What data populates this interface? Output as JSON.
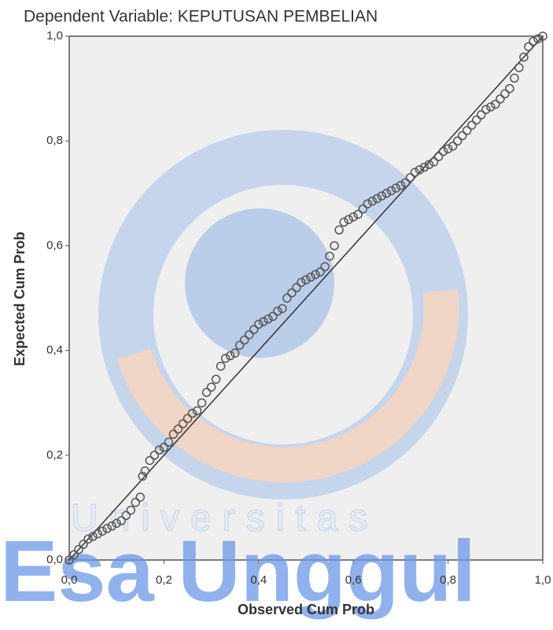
{
  "chart_data": {
    "type": "scatter",
    "title": "Dependent Variable: KEPUTUSAN PEMBELIAN",
    "x_label": "Observed Cum Prob",
    "y_label": "Expected Cum Prob",
    "xlim": [
      0,
      1
    ],
    "ylim": [
      0,
      1
    ],
    "xticks": [
      {
        "value": 0,
        "label": "0,0"
      },
      {
        "value": 0.2,
        "label": "0,2"
      },
      {
        "value": 0.4,
        "label": "0,4"
      },
      {
        "value": 0.6,
        "label": "0,6"
      },
      {
        "value": 0.8,
        "label": "0,8"
      },
      {
        "value": 1,
        "label": "1,0"
      }
    ],
    "yticks": [
      {
        "value": 0,
        "label": "0,0"
      },
      {
        "value": 0.2,
        "label": "0,2"
      },
      {
        "value": 0.4,
        "label": "0,4"
      },
      {
        "value": 0.6,
        "label": "0,6"
      },
      {
        "value": 0.8,
        "label": "0,8"
      },
      {
        "value": 1,
        "label": "1,0"
      }
    ],
    "marker_color": "#555555",
    "reference_line_color": "#333333",
    "x": [
      0,
      0.01,
      0.02,
      0.03,
      0.04,
      0.05,
      0.06,
      0.07,
      0.08,
      0.09,
      0.1,
      0.11,
      0.12,
      0.13,
      0.14,
      0.15,
      0.155,
      0.16,
      0.17,
      0.18,
      0.19,
      0.2,
      0.21,
      0.22,
      0.23,
      0.24,
      0.25,
      0.26,
      0.27,
      0.28,
      0.29,
      0.3,
      0.31,
      0.32,
      0.33,
      0.34,
      0.35,
      0.36,
      0.37,
      0.38,
      0.39,
      0.4,
      0.41,
      0.42,
      0.43,
      0.44,
      0.45,
      0.46,
      0.47,
      0.48,
      0.49,
      0.5,
      0.51,
      0.52,
      0.53,
      0.54,
      0.55,
      0.56,
      0.57,
      0.58,
      0.59,
      0.6,
      0.61,
      0.62,
      0.63,
      0.64,
      0.65,
      0.66,
      0.67,
      0.68,
      0.69,
      0.7,
      0.71,
      0.72,
      0.73,
      0.74,
      0.75,
      0.76,
      0.77,
      0.78,
      0.79,
      0.8,
      0.81,
      0.82,
      0.83,
      0.84,
      0.85,
      0.86,
      0.87,
      0.88,
      0.89,
      0.9,
      0.91,
      0.92,
      0.93,
      0.94,
      0.95,
      0.96,
      0.97,
      0.98,
      0.99,
      1
    ],
    "values": [
      0,
      0.01,
      0.02,
      0.03,
      0.04,
      0.045,
      0.05,
      0.055,
      0.06,
      0.065,
      0.07,
      0.075,
      0.085,
      0.095,
      0.11,
      0.12,
      0.16,
      0.17,
      0.19,
      0.2,
      0.21,
      0.215,
      0.225,
      0.24,
      0.25,
      0.26,
      0.27,
      0.28,
      0.285,
      0.3,
      0.32,
      0.33,
      0.345,
      0.37,
      0.385,
      0.39,
      0.395,
      0.41,
      0.42,
      0.43,
      0.44,
      0.45,
      0.455,
      0.46,
      0.465,
      0.475,
      0.48,
      0.5,
      0.51,
      0.52,
      0.53,
      0.535,
      0.54,
      0.545,
      0.55,
      0.56,
      0.58,
      0.6,
      0.63,
      0.645,
      0.65,
      0.655,
      0.66,
      0.67,
      0.68,
      0.685,
      0.69,
      0.695,
      0.7,
      0.705,
      0.71,
      0.715,
      0.72,
      0.73,
      0.74,
      0.745,
      0.75,
      0.755,
      0.76,
      0.77,
      0.78,
      0.785,
      0.79,
      0.8,
      0.81,
      0.82,
      0.83,
      0.84,
      0.85,
      0.86,
      0.865,
      0.87,
      0.88,
      0.89,
      0.9,
      0.92,
      0.94,
      0.96,
      0.98,
      0.99,
      0.995,
      1
    ]
  },
  "watermark": {
    "line1": "Universitas",
    "line2": "Esa Unggul"
  }
}
